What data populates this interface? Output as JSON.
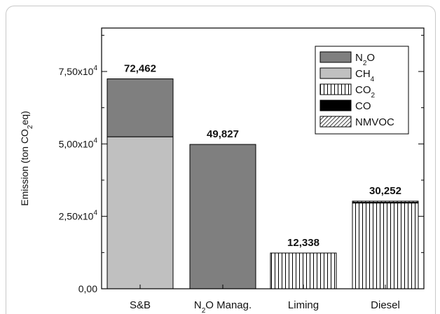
{
  "chart_data": {
    "type": "bar",
    "stacked": true,
    "title": "",
    "xlabel": "",
    "ylabel": {
      "main": "Emission (ton CO",
      "sub": "2",
      "suffix": "eq)"
    },
    "ylim": [
      0,
      90000
    ],
    "yticks": [
      {
        "value": 0,
        "label": "0,00",
        "exp": ""
      },
      {
        "value": 25000,
        "label": "2,50x10",
        "exp": "4"
      },
      {
        "value": 50000,
        "label": "5,00x10",
        "exp": "4"
      },
      {
        "value": 75000,
        "label": "7,50x10",
        "exp": "4"
      }
    ],
    "categories": [
      {
        "main": "S&B",
        "sub": "",
        "suffix": ""
      },
      {
        "main": "N",
        "sub": "2",
        "suffix": "O Manag."
      },
      {
        "main": "Liming",
        "sub": "",
        "suffix": ""
      },
      {
        "main": "Diesel",
        "sub": "",
        "suffix": ""
      }
    ],
    "totals_labels": [
      "72,462",
      "49,827",
      "12,338",
      "30,252"
    ],
    "series": [
      {
        "name": {
          "main": "N",
          "sub": "2",
          "suffix": "O"
        },
        "fill": "#7f7f7f",
        "pattern": "solid",
        "values": [
          20000,
          49827,
          0,
          0
        ]
      },
      {
        "name": {
          "main": "CH",
          "sub": "4",
          "suffix": ""
        },
        "fill": "#c0c0c0",
        "pattern": "solid",
        "values": [
          52462,
          0,
          0,
          0
        ]
      },
      {
        "name": {
          "main": "CO",
          "sub": "2",
          "suffix": ""
        },
        "fill": "#ffffff",
        "pattern": "vertical-lines",
        "values": [
          0,
          0,
          12338,
          29600
        ]
      },
      {
        "name": {
          "main": "CO",
          "sub": "",
          "suffix": ""
        },
        "fill": "#000000",
        "pattern": "solid",
        "values": [
          0,
          0,
          0,
          250
        ]
      },
      {
        "name": {
          "main": "NMVOC",
          "sub": "",
          "suffix": ""
        },
        "fill": "#ffffff",
        "pattern": "diagonal-lines",
        "values": [
          0,
          0,
          0,
          402
        ]
      }
    ],
    "legend_position": "top-right",
    "grid": false
  }
}
